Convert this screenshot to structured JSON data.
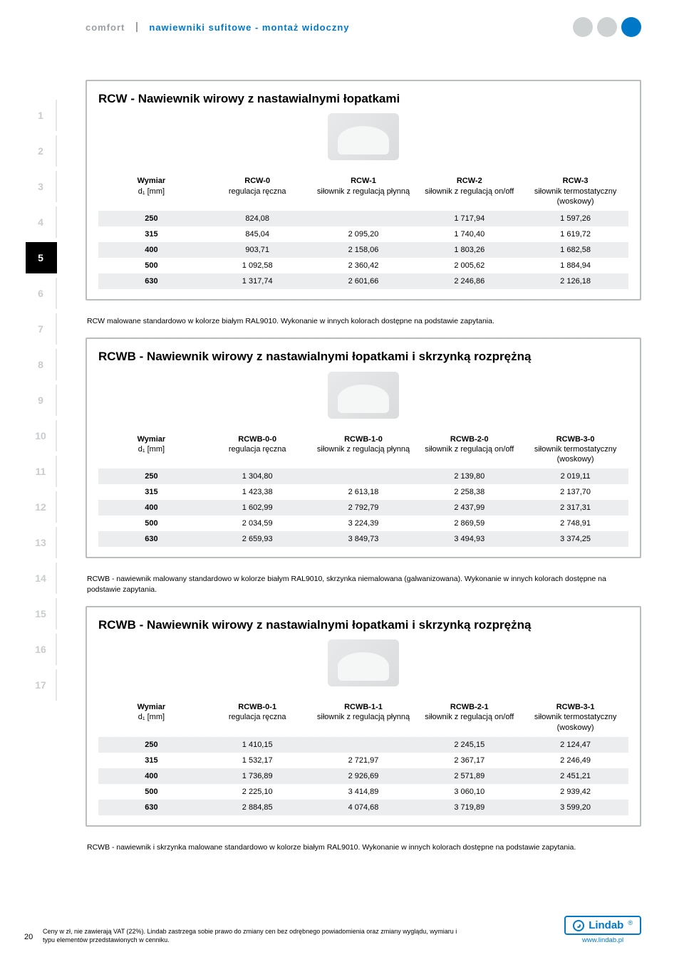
{
  "header": {
    "brand": "comfort",
    "subtitle": "nawiewniki sufitowe - montaż widoczny",
    "dot_colors": [
      "#cfd2d3",
      "#cfd2d3",
      "#0078c8"
    ]
  },
  "sidebar": {
    "tabs": [
      "1",
      "2",
      "3",
      "4",
      "5",
      "6",
      "7",
      "8",
      "9",
      "10",
      "11",
      "12",
      "13",
      "14",
      "15",
      "16",
      "17"
    ],
    "active_index": 4
  },
  "section1": {
    "title": "RCW - Nawiewnik wirowy z nastawialnymi łopatkami",
    "columns": [
      {
        "line1": "Wymiar",
        "line2": "d₁ [mm]"
      },
      {
        "line1": "RCW-0",
        "line2": "regulacja ręczna"
      },
      {
        "line1": "RCW-1",
        "line2": "siłownik z regulacją płynną"
      },
      {
        "line1": "RCW-2",
        "line2": "siłownik z regulacją on/off"
      },
      {
        "line1": "RCW-3",
        "line2": "siłownik termostatyczny (woskowy)"
      }
    ],
    "rows": [
      [
        "250",
        "824,08",
        "",
        "1 717,94",
        "1 597,26"
      ],
      [
        "315",
        "845,04",
        "2 095,20",
        "1 740,40",
        "1 619,72"
      ],
      [
        "400",
        "903,71",
        "2 158,06",
        "1 803,26",
        "1 682,58"
      ],
      [
        "500",
        "1 092,58",
        "2 360,42",
        "2 005,62",
        "1 884,94"
      ],
      [
        "630",
        "1 317,74",
        "2 601,66",
        "2 246,86",
        "2 126,18"
      ]
    ],
    "note": "RCW malowane standardowo w kolorze białym RAL9010. Wykonanie w innych kolorach dostępne na podstawie zapytania."
  },
  "section2": {
    "title": "RCWB - Nawiewnik wirowy z nastawialnymi łopatkami i skrzynką rozprężną",
    "columns": [
      {
        "line1": "Wymiar",
        "line2": "d₁ [mm]"
      },
      {
        "line1": "RCWB-0-0",
        "line2": "regulacja ręczna"
      },
      {
        "line1": "RCWB-1-0",
        "line2": "siłownik z regulacją płynną"
      },
      {
        "line1": "RCWB-2-0",
        "line2": "siłownik z regulacją on/off"
      },
      {
        "line1": "RCWB-3-0",
        "line2": "siłownik termostatyczny (woskowy)"
      }
    ],
    "rows": [
      [
        "250",
        "1 304,80",
        "",
        "2 139,80",
        "2 019,11"
      ],
      [
        "315",
        "1 423,38",
        "2 613,18",
        "2 258,38",
        "2 137,70"
      ],
      [
        "400",
        "1 602,99",
        "2 792,79",
        "2 437,99",
        "2 317,31"
      ],
      [
        "500",
        "2 034,59",
        "3 224,39",
        "2 869,59",
        "2 748,91"
      ],
      [
        "630",
        "2 659,93",
        "3 849,73",
        "3 494,93",
        "3 374,25"
      ]
    ],
    "note": "RCWB - nawiewnik malowany standardowo w kolorze białym RAL9010, skrzynka niemalowana (galwanizowana). Wykonanie w innych kolorach dostępne na podstawie zapytania."
  },
  "section3": {
    "title": "RCWB - Nawiewnik wirowy z nastawialnymi łopatkami i skrzynką rozprężną",
    "columns": [
      {
        "line1": "Wymiar",
        "line2": "d₁ [mm]"
      },
      {
        "line1": "RCWB-0-1",
        "line2": "regulacja ręczna"
      },
      {
        "line1": "RCWB-1-1",
        "line2": "siłownik z regulacją płynną"
      },
      {
        "line1": "RCWB-2-1",
        "line2": "siłownik z regulacją on/off"
      },
      {
        "line1": "RCWB-3-1",
        "line2": "siłownik termostatyczny (woskowy)"
      }
    ],
    "rows": [
      [
        "250",
        "1 410,15",
        "",
        "2 245,15",
        "2 124,47"
      ],
      [
        "315",
        "1 532,17",
        "2 721,97",
        "2 367,17",
        "2 246,49"
      ],
      [
        "400",
        "1 736,89",
        "2 926,69",
        "2 571,89",
        "2 451,21"
      ],
      [
        "500",
        "2 225,10",
        "3 414,89",
        "3 060,10",
        "2 939,42"
      ],
      [
        "630",
        "2 884,85",
        "4 074,68",
        "3 719,89",
        "3 599,20"
      ]
    ],
    "note": "RCWB - nawiewnik i skrzynka malowane standardowo w kolorze białym RAL9010. Wykonanie w innych kolorach dostępne na podstawie zapytania."
  },
  "footer": {
    "disclaimer": "Ceny w zł, nie zawierają VAT (22%). Lindab zastrzega sobie prawo do zmiany cen bez odrębnego powiadomienia oraz zmiany wyglądu, wymiaru i typu elementów przedstawionych w cenniku.",
    "page_number": "20",
    "logo_text": "Lindab",
    "logo_url": "www.lindab.pl"
  },
  "colors": {
    "accent_blue": "#0078c8",
    "grey": "#cfd2d3",
    "row_even": "#ebedee",
    "border": "#babdbe",
    "brand_grey": "#9aa0a3"
  }
}
